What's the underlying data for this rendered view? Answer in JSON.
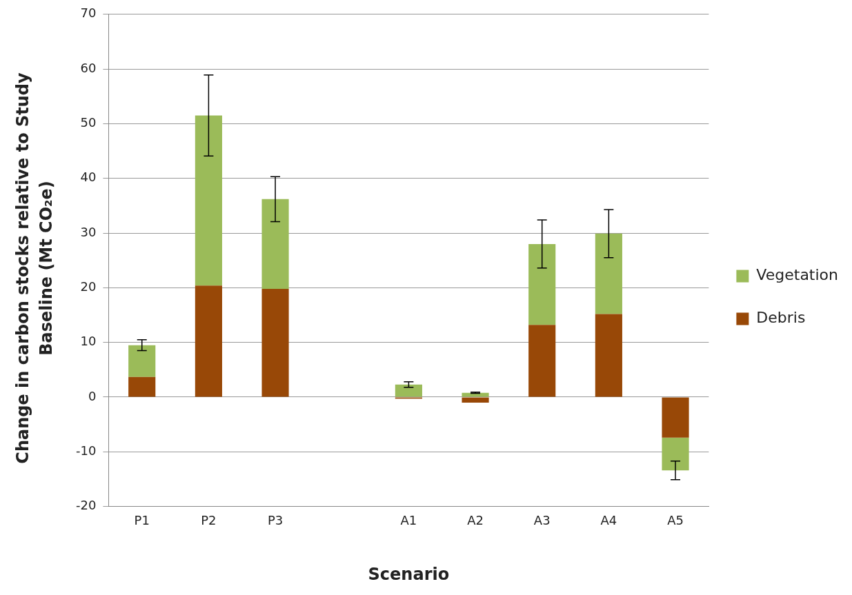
{
  "chart_data": {
    "type": "bar",
    "stacked": true,
    "xlabel": "Scenario",
    "ylabel": "Change in carbon stocks relative to Study Baseline  (Mt CO₂e)",
    "categories": [
      "P1",
      "P2",
      "P3",
      null,
      "A1",
      "A2",
      "A3",
      "A4",
      "A5"
    ],
    "series": [
      {
        "name": "Debris",
        "color": "#984807",
        "values": [
          3.7,
          20.4,
          19.8,
          null,
          -0.3,
          -1.0,
          13.2,
          15.2,
          -7.4
        ]
      },
      {
        "name": "Vegetation",
        "color": "#9bbb59",
        "values": [
          5.8,
          31.1,
          16.4,
          null,
          2.3,
          0.8,
          14.8,
          14.7,
          -6.0
        ],
        "errors": [
          1.0,
          7.4,
          4.1,
          null,
          0.5,
          0.1,
          4.4,
          4.4,
          1.7
        ]
      }
    ],
    "ylim": [
      -20,
      70
    ],
    "yticks": [
      -20,
      -10,
      0,
      10,
      20,
      30,
      40,
      50,
      60,
      70
    ],
    "grid": "y",
    "legend": "right"
  }
}
